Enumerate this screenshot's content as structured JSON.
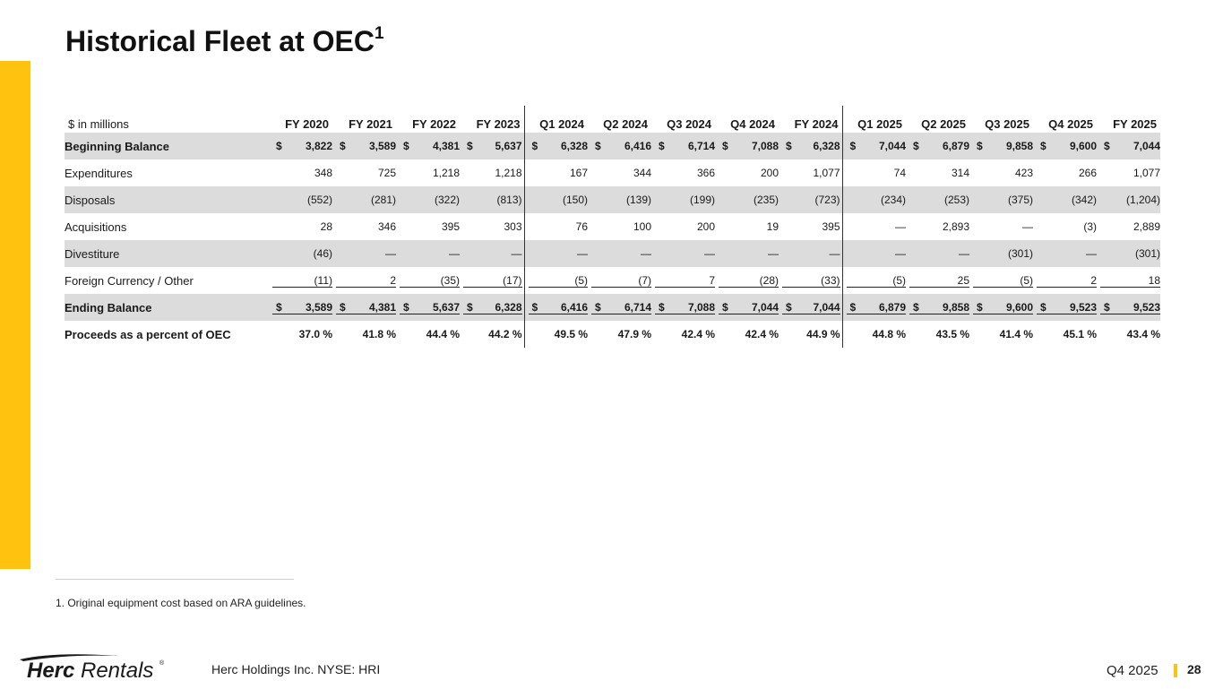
{
  "title": {
    "text": "Historical Fleet at OEC",
    "superscript": "1"
  },
  "table": {
    "unit_label": "$ in millions",
    "columns": [
      "FY 2020",
      "FY 2021",
      "FY 2022",
      "FY 2023",
      "Q1 2024",
      "Q2 2024",
      "Q3 2024",
      "Q4 2024",
      "FY 2024",
      "Q1 2025",
      "Q2 2025",
      "Q3 2025",
      "Q4 2025",
      "FY 2025"
    ],
    "rows": [
      {
        "label": "Beginning Balance",
        "dollar": true,
        "values": [
          "3,822",
          "3,589",
          "4,381",
          "5,637",
          "6,328",
          "6,416",
          "6,714",
          "7,088",
          "6,328",
          "7,044",
          "6,879",
          "9,858",
          "9,600",
          "7,044"
        ]
      },
      {
        "label": "Expenditures",
        "values": [
          "348",
          "725",
          "1,218",
          "1,218",
          "167",
          "344",
          "366",
          "200",
          "1,077",
          "74",
          "314",
          "423",
          "266",
          "1,077"
        ]
      },
      {
        "label": "Disposals",
        "values": [
          "(552)",
          "(281)",
          "(322)",
          "(813)",
          "(150)",
          "(139)",
          "(199)",
          "(235)",
          "(723)",
          "(234)",
          "(253)",
          "(375)",
          "(342)",
          "(1,204)"
        ]
      },
      {
        "label": "Acquisitions",
        "values": [
          "28",
          "346",
          "395",
          "303",
          "76",
          "100",
          "200",
          "19",
          "395",
          "—",
          "2,893",
          "—",
          "(3)",
          "2,889"
        ]
      },
      {
        "label": "Divestiture",
        "values": [
          "(46)",
          "—",
          "—",
          "—",
          "—",
          "—",
          "—",
          "—",
          "—",
          "—",
          "—",
          "(301)",
          "—",
          "(301)"
        ]
      },
      {
        "label": "Foreign Currency / Other",
        "values": [
          "(11)",
          "2",
          "(35)",
          "(17)",
          "(5)",
          "(7)",
          "7",
          "(28)",
          "(33)",
          "(5)",
          "25",
          "(5)",
          "2",
          "18"
        ]
      },
      {
        "label": "Ending Balance",
        "dollar": true,
        "values": [
          "3,589",
          "4,381",
          "5,637",
          "6,328",
          "6,416",
          "6,714",
          "7,088",
          "7,044",
          "7,044",
          "6,879",
          "9,858",
          "9,600",
          "9,523",
          "9,523"
        ]
      },
      {
        "label": "Proceeds as a percent of OEC",
        "values": [
          "37.0 %",
          "41.8 %",
          "44.4 %",
          "44.2 %",
          "49.5 %",
          "47.9 %",
          "42.4 %",
          "42.4 %",
          "44.9 %",
          "44.8 %",
          "43.5 %",
          "41.4 %",
          "45.1 %",
          "43.4 %"
        ]
      }
    ],
    "currency_symbol": "$"
  },
  "footnote": "1. Original equipment cost based on ARA guidelines.",
  "footer": {
    "logo_text": {
      "bold": "Herc",
      "regular": "Rentals",
      "mark": "®"
    },
    "company": "Herc Holdings Inc.  NYSE: HRI",
    "period": "Q4 2025",
    "page": "28"
  },
  "colors": {
    "accent": "#FFC20E",
    "row_shade": "#DCDCDC"
  }
}
